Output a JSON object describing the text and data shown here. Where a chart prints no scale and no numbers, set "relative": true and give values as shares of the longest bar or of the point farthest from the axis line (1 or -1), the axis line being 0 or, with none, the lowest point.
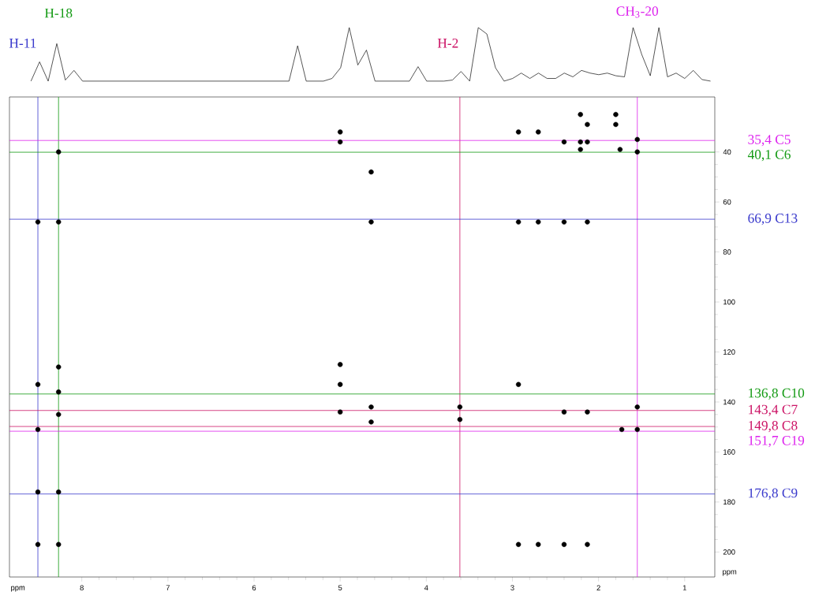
{
  "chart_data": [
    {
      "type": "line",
      "relative": true,
      "tick_labels": false,
      "line_style": "solid",
      "categories": [
        null,
        null,
        null,
        null,
        null,
        null,
        null,
        null,
        null,
        null,
        null,
        null,
        null,
        null,
        null,
        null,
        null,
        null,
        null,
        null,
        null,
        null,
        null,
        null,
        null,
        null,
        null,
        null,
        null,
        null,
        null,
        null,
        null,
        null,
        null,
        null,
        null,
        null,
        null,
        null,
        null,
        null,
        null,
        null,
        null,
        null,
        null,
        null,
        null,
        null,
        null,
        null,
        null,
        null,
        null,
        null,
        null,
        null,
        null,
        null,
        null,
        null,
        null,
        null,
        null,
        null,
        null,
        null,
        null,
        null,
        null,
        null,
        null,
        null,
        null,
        null,
        null,
        null,
        null,
        null,
        null,
        null
      ],
      "series": [
        {
          "color": "#000000",
          "values": [
            null,
            null,
            0,
            0.36,
            0,
            0.7,
            0.02,
            0.2,
            0,
            null,
            null,
            null,
            null,
            null,
            null,
            null,
            null,
            null,
            null,
            null,
            null,
            null,
            null,
            null,
            null,
            null,
            null,
            null,
            null,
            null,
            null,
            null,
            0,
            0.66,
            0,
            null,
            0,
            0.05,
            0.25,
            1,
            0.3,
            0.58,
            0,
            null,
            null,
            null,
            0,
            0.27,
            0,
            null,
            0,
            0.02,
            0.18,
            0,
            1,
            0.88,
            0.25,
            0,
            0.05,
            0.15,
            0.05,
            0.15,
            0.05,
            0.05,
            0.15,
            0.08,
            0.2,
            0.15,
            0.12,
            0.15,
            0.1,
            0.08,
            1,
            0.5,
            0.1,
            1,
            0.08,
            0.15,
            0.05,
            0.2,
            0.03,
            0
          ]
        }
      ]
    },
    {
      "type": "scatter",
      "xlim": [
        8.84,
        0.65
      ],
      "ylim": [
        210,
        18
      ],
      "xticks": [
        8,
        7,
        6,
        5,
        4,
        3,
        2,
        1
      ],
      "yticks": [
        40,
        60,
        80,
        100,
        120,
        140,
        160,
        180,
        200
      ],
      "xlabel": "ppm",
      "ylabel": "ppm",
      "marker": "circle",
      "series": [
        {
          "color": "#000000",
          "x": [
            8.51,
            8.51,
            8.51,
            8.51,
            8.51,
            8.27,
            8.27,
            8.27,
            8.27,
            8.27,
            8.27,
            8.27,
            5.0,
            5.0,
            5.0,
            5.0,
            5.0,
            4.64,
            4.64,
            4.64,
            4.64,
            3.61,
            3.61,
            2.93,
            2.93,
            2.93,
            2.93,
            2.7,
            2.7,
            2.7,
            2.4,
            2.4,
            2.4,
            2.4,
            2.21,
            2.21,
            2.21,
            2.13,
            2.13,
            2.13,
            2.13,
            2.13,
            1.8,
            1.8,
            1.75,
            1.55,
            1.55,
            1.55,
            1.55,
            1.73
          ],
          "values": [
            68,
            133,
            151,
            176,
            197,
            40,
            68,
            126,
            136,
            145,
            176,
            197,
            32,
            36,
            125,
            133,
            144,
            48,
            68,
            142,
            148,
            142,
            147,
            32,
            68,
            133,
            197,
            32,
            68,
            197,
            36,
            68,
            144,
            197,
            25,
            36,
            39,
            29,
            36,
            68,
            144,
            197,
            25,
            29,
            39,
            35,
            40,
            142,
            151,
            151
          ]
        }
      ],
      "ref_lines": [
        {
          "axis": "x",
          "value": 8.51,
          "label": "H-11",
          "color": "#3a3acc"
        },
        {
          "axis": "x",
          "value": 8.27,
          "label": "H-18",
          "color": "#139a13"
        },
        {
          "axis": "x",
          "value": 3.61,
          "label": "H-2",
          "color": "#cc1466"
        },
        {
          "axis": "x",
          "value": 1.55,
          "label": "CH$_{3}$-20",
          "color": "#dd22ee"
        },
        {
          "axis": "y",
          "value": 35.4,
          "label": "35,4 C5",
          "color": "#dd22ee"
        },
        {
          "axis": "y",
          "value": 40.1,
          "label": "40,1 C6",
          "color": "#139a13"
        },
        {
          "axis": "y",
          "value": 66.9,
          "label": "66,9 C13",
          "color": "#3a3acc"
        },
        {
          "axis": "y",
          "value": 136.8,
          "label": "136,8 C10",
          "color": "#139a13"
        },
        {
          "axis": "y",
          "value": 143.4,
          "label": "143,4 C7",
          "color": "#cc1466"
        },
        {
          "axis": "y",
          "value": 149.8,
          "label": "149,8 C8",
          "color": "#cc1466"
        },
        {
          "axis": "y",
          "value": 151.7,
          "label": "151,7 C19",
          "color": "#dd22ee"
        },
        {
          "axis": "y",
          "value": 176.8,
          "label": "176,8 C9",
          "color": "#3a3acc"
        }
      ]
    }
  ]
}
